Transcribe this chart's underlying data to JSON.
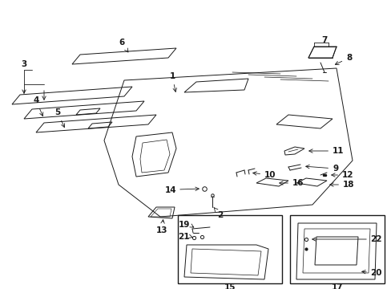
{
  "bg_color": "#ffffff",
  "line_color": "#1a1a1a",
  "fig_width": 4.89,
  "fig_height": 3.6,
  "dpi": 100,
  "font_size": 7.5,
  "lw": 0.7
}
